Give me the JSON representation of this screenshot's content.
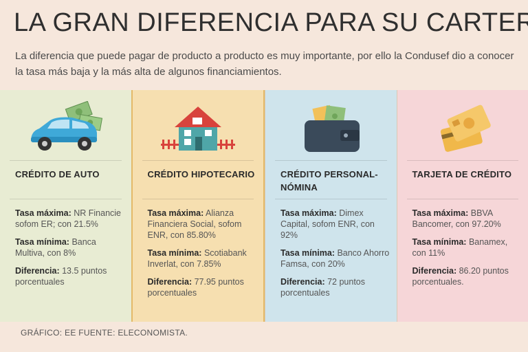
{
  "header": {
    "title": "LA GRAN DIFERENCIA PARA SU CARTERA",
    "subtitle": "La diferencia que puede pagar de producto a producto es muy importante, por ello la Condusef dio a conocer la tasa más baja y la más alta de algunos financiamientos."
  },
  "columns": [
    {
      "icon": "car-with-money-icon",
      "heading": "CRÉDITO DE AUTO",
      "max_label": "Tasa máxima:",
      "max_value": " NR Financie sofom ER; con 21.5%",
      "min_label": "Tasa mínima:",
      "min_value": " Banca Multiva, con 8%",
      "diff_label": "Diferencia:",
      "diff_value": " 13.5 puntos porcentuales",
      "color": "#e8ecd3"
    },
    {
      "icon": "house-icon",
      "heading": "CRÉDITO HIPOTECARIO",
      "max_label": "Tasa máxima:",
      "max_value": " Alianza Financiera Social, sofom ENR, con 85.80%",
      "min_label": "Tasa mínima:",
      "min_value": " Scotiabank Inverlat, con 7.85%",
      "diff_label": "Diferencia:",
      "diff_value": "  77.95 puntos porcentuales",
      "color": "#f6dfb0"
    },
    {
      "icon": "wallet-icon",
      "heading": "CRÉDITO PERSONAL-NÓMINA",
      "max_label": "Tasa máxima:",
      "max_value": " Dimex Capital, sofom ENR, con 92%",
      "min_label": "Tasa mínima:",
      "min_value": " Banco Ahorro Famsa, con 20%",
      "diff_label": "Diferencia:",
      "diff_value": " 72 puntos porcentuales",
      "color": "#cfe4ec"
    },
    {
      "icon": "credit-cards-icon",
      "heading": "TARJETA DE CRÉDITO",
      "max_label": "Tasa máxima:",
      "max_value": " BBVA Bancomer, con 97.20%",
      "min_label": "Tasa mínima:",
      "min_value": " Banamex, con 11%",
      "diff_label": "Diferencia:",
      "diff_value": " 86.20 puntos porcentuales.",
      "color": "#f6d6d8"
    }
  ],
  "footer": {
    "source": "GRÁFICO: EE  FUENTE: ELECONOMISTA."
  }
}
